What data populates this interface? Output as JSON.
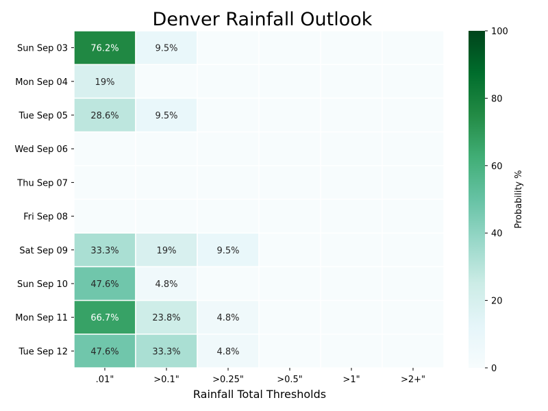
{
  "chart_data": {
    "type": "heatmap",
    "title": "Denver Rainfall Outlook",
    "xlabel": "Rainfall Total Thresholds",
    "ylabel": "",
    "x_categories": [
      ".01\"",
      ">0.1\"",
      ">0.25\"",
      ">0.5\"",
      ">1\"",
      ">2+\""
    ],
    "y_categories": [
      "Sun Sep 03",
      "Mon Sep 04",
      "Tue Sep 05",
      "Wed Sep 06",
      "Thu Sep 07",
      "Fri Sep 08",
      "Sat Sep 09",
      "Sun Sep 10",
      "Mon Sep 11",
      "Tue Sep 12"
    ],
    "values": [
      [
        76.2,
        9.5,
        0,
        0,
        0,
        0
      ],
      [
        19,
        0,
        0,
        0,
        0,
        0
      ],
      [
        28.6,
        9.5,
        0,
        0,
        0,
        0
      ],
      [
        0,
        0,
        0,
        0,
        0,
        0
      ],
      [
        0,
        0,
        0,
        0,
        0,
        0
      ],
      [
        0,
        0,
        0,
        0,
        0,
        0
      ],
      [
        33.3,
        19,
        9.5,
        0,
        0,
        0
      ],
      [
        47.6,
        4.8,
        0,
        0,
        0,
        0
      ],
      [
        66.7,
        23.8,
        4.8,
        0,
        0,
        0
      ],
      [
        47.6,
        33.3,
        4.8,
        0,
        0,
        0
      ]
    ],
    "value_labels": [
      [
        "76.2%",
        "9.5%",
        "",
        "",
        "",
        ""
      ],
      [
        "19%",
        "",
        "",
        "",
        "",
        ""
      ],
      [
        "28.6%",
        "9.5%",
        "",
        "",
        "",
        ""
      ],
      [
        "",
        "",
        "",
        "",
        "",
        ""
      ],
      [
        "",
        "",
        "",
        "",
        "",
        ""
      ],
      [
        "",
        "",
        "",
        "",
        "",
        ""
      ],
      [
        "33.3%",
        "19%",
        "9.5%",
        "",
        "",
        ""
      ],
      [
        "47.6%",
        "4.8%",
        "",
        "",
        "",
        ""
      ],
      [
        "66.7%",
        "23.8%",
        "4.8%",
        "",
        "",
        ""
      ],
      [
        "47.6%",
        "33.3%",
        "4.8%",
        "",
        "",
        ""
      ]
    ],
    "colorbar": {
      "label": "Probability %",
      "min": 0,
      "max": 100,
      "ticks": [
        0,
        20,
        40,
        60,
        80,
        100
      ],
      "colormap": "BuGn",
      "colors": [
        "#f7fcfd",
        "#e5f5f9",
        "#ccece6",
        "#99d8c9",
        "#66c2a4",
        "#41ae76",
        "#238b45",
        "#006d2c",
        "#00441b"
      ]
    },
    "grid": false
  }
}
